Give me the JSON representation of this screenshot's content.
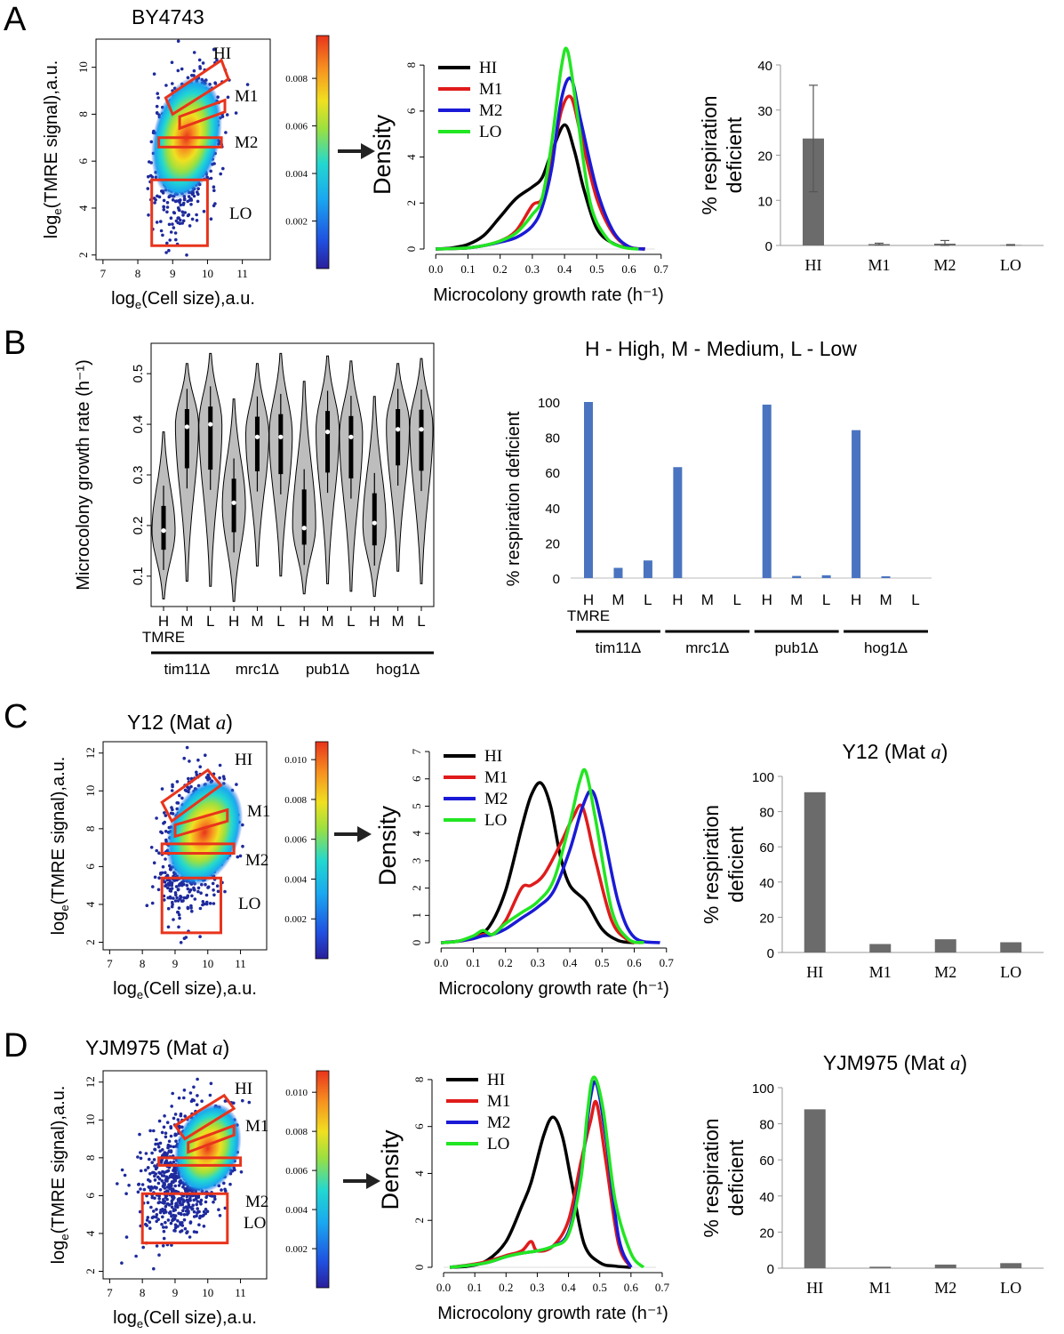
{
  "colors": {
    "HI": "#000000",
    "M1": "#e01b1b",
    "M2": "#1a1ad6",
    "LO": "#22e622",
    "bar_gray": "#6b6b6b",
    "bar_blue": "#4a74c0",
    "gate": "#e8341c",
    "violin": "#bdbdbd",
    "scatter_point": "#1e2a9c",
    "arrow": "#222222"
  },
  "icons": {
    "arrow": "right-arrow-icon"
  },
  "legend_labels": [
    "HI",
    "M1",
    "M2",
    "LO"
  ],
  "gate_labels": [
    "HI",
    "M1",
    "M2",
    "LO"
  ],
  "panels": {
    "A": {
      "letter": "A",
      "strain": "BY4743",
      "scatter": {
        "xlabel_main": "log",
        "xlabel_sub": "e",
        "xlabel_rest": "(Cell size),a.u.",
        "ylabel_main": "log",
        "ylabel_sub": "e",
        "ylabel_rest": "(TMRE signal),a.u.",
        "xticks": [
          "7",
          "8",
          "9",
          "10",
          "11"
        ],
        "yticks": [
          "2",
          "4",
          "6",
          "8",
          "10"
        ],
        "xlim": [
          6.8,
          11.8
        ],
        "ylim": [
          1.8,
          11.2
        ]
      },
      "colorbar_ticks": [
        "0.002",
        "0.004",
        "0.006",
        "0.008"
      ]
    },
    "B": {
      "letter": "B",
      "abbrev": "H - High, M - Medium, L - Low"
    },
    "C": {
      "letter": "C",
      "strain": "Y12 (Mat ",
      "strain_italic": "a",
      "strain_close": ")",
      "scatter": {
        "xlabel_main": "log",
        "xlabel_sub": "e",
        "xlabel_rest": "(Cell size),a.u.",
        "ylabel_main": "log",
        "ylabel_sub": "e",
        "ylabel_rest": "(TMRE signal),a.u.",
        "xticks": [
          "7",
          "8",
          "9",
          "10",
          "11"
        ],
        "yticks": [
          "2",
          "4",
          "6",
          "8",
          "10",
          "12"
        ],
        "xlim": [
          6.8,
          11.8
        ],
        "ylim": [
          1.6,
          12.6
        ]
      },
      "colorbar_ticks": [
        "0.002",
        "0.004",
        "0.006",
        "0.008",
        "0.010"
      ]
    },
    "D": {
      "letter": "D",
      "strain": "YJM975 (Mat ",
      "strain_italic": "a",
      "strain_close": ")",
      "scatter": {
        "xlabel_main": "log",
        "xlabel_sub": "e",
        "xlabel_rest": "(Cell size),a.u.",
        "ylabel_main": "log",
        "ylabel_sub": "e",
        "ylabel_rest": "(TMRE signal),a.u.",
        "xticks": [
          "7",
          "8",
          "9",
          "10",
          "11"
        ],
        "yticks": [
          "2",
          "4",
          "6",
          "8",
          "10",
          "12"
        ],
        "xlim": [
          6.8,
          11.8
        ],
        "ylim": [
          1.6,
          12.6
        ]
      },
      "colorbar_ticks": [
        "0.002",
        "0.004",
        "0.006",
        "0.008",
        "0.010"
      ]
    }
  },
  "chart_data": [
    {
      "id": "A-density",
      "type": "line",
      "ylabel": "Density",
      "xlabel": "Microcolony growth rate (h⁻¹)",
      "xlim": [
        -0.02,
        0.72
      ],
      "ylim": [
        0,
        8.2
      ],
      "xticks": [
        "0.0",
        "0.1",
        "0.2",
        "0.3",
        "0.4",
        "0.5",
        "0.6",
        "0.7"
      ],
      "yticks": [
        "0",
        "2",
        "4",
        "6",
        "8"
      ],
      "series": [
        {
          "name": "HI",
          "x": [
            0,
            0.05,
            0.1,
            0.15,
            0.2,
            0.25,
            0.3,
            0.33,
            0.36,
            0.4,
            0.43,
            0.46,
            0.5,
            0.55,
            0.6,
            0.65
          ],
          "y": [
            0,
            0.05,
            0.2,
            0.6,
            1.4,
            2.2,
            2.7,
            3.1,
            4.2,
            5.4,
            4.3,
            2.6,
            0.9,
            0.25,
            0.05,
            0
          ]
        },
        {
          "name": "M1",
          "x": [
            0,
            0.05,
            0.1,
            0.15,
            0.2,
            0.25,
            0.3,
            0.33,
            0.36,
            0.39,
            0.42,
            0.45,
            0.5,
            0.55,
            0.6,
            0.65
          ],
          "y": [
            0,
            0.02,
            0.05,
            0.15,
            0.35,
            0.8,
            1.9,
            2.2,
            3.8,
            6.0,
            6.6,
            5.0,
            2.2,
            0.7,
            0.1,
            0
          ]
        },
        {
          "name": "M2",
          "x": [
            0,
            0.05,
            0.1,
            0.15,
            0.2,
            0.25,
            0.3,
            0.33,
            0.36,
            0.39,
            0.42,
            0.45,
            0.5,
            0.55,
            0.6,
            0.65
          ],
          "y": [
            0,
            0.02,
            0.05,
            0.15,
            0.3,
            0.5,
            1.0,
            1.8,
            3.5,
            6.5,
            7.4,
            5.6,
            2.6,
            0.8,
            0.1,
            0
          ]
        },
        {
          "name": "LO",
          "x": [
            0,
            0.05,
            0.1,
            0.15,
            0.2,
            0.25,
            0.3,
            0.33,
            0.36,
            0.39,
            0.41,
            0.44,
            0.48,
            0.53,
            0.58,
            0.63
          ],
          "y": [
            0,
            0.02,
            0.05,
            0.15,
            0.35,
            0.7,
            1.5,
            2.2,
            4.6,
            7.9,
            8.6,
            5.8,
            2.0,
            0.5,
            0.08,
            0
          ]
        }
      ]
    },
    {
      "id": "A-bar",
      "type": "bar",
      "ylabel_line1": "% respiration",
      "ylabel_line2": "deficient",
      "categories": [
        "HI",
        "M1",
        "M2",
        "LO"
      ],
      "values": [
        23.7,
        0.3,
        0.4,
        0.1
      ],
      "errors": [
        11.8,
        0.2,
        0.7,
        0.1
      ],
      "ylim": [
        0,
        40
      ],
      "yticks": [
        "0",
        "10",
        "20",
        "30",
        "40"
      ]
    },
    {
      "id": "B-violin",
      "type": "violin",
      "ylabel": "Microcolony growth rate (h⁻¹)",
      "ylim": [
        0.04,
        0.56
      ],
      "yticks": [
        "0.1",
        "0.2",
        "0.3",
        "0.4",
        "0.5"
      ],
      "categories": [
        "H",
        "M",
        "L",
        "H",
        "M",
        "L",
        "H",
        "M",
        "L",
        "H",
        "M",
        "L"
      ],
      "tmre_label": "TMRE",
      "groups": [
        "tim11Δ",
        "mrc1Δ",
        "pub1Δ",
        "hog1Δ"
      ],
      "medians": [
        0.19,
        0.395,
        0.4,
        0.245,
        0.375,
        0.375,
        0.195,
        0.385,
        0.375,
        0.205,
        0.39,
        0.39
      ],
      "mins": [
        0.055,
        0.09,
        0.08,
        0.05,
        0.12,
        0.1,
        0.065,
        0.085,
        0.07,
        0.06,
        0.11,
        0.085
      ],
      "maxs": [
        0.385,
        0.52,
        0.54,
        0.45,
        0.52,
        0.54,
        0.485,
        0.535,
        0.525,
        0.455,
        0.52,
        0.53
      ],
      "modes": [
        0.19,
        0.4,
        0.4,
        0.24,
        0.38,
        0.38,
        0.2,
        0.39,
        0.38,
        0.2,
        0.4,
        0.395
      ]
    },
    {
      "id": "B-bar",
      "type": "bar",
      "ylabel": "% respiration deficient",
      "categories": [
        "H",
        "M",
        "L",
        "H",
        "M",
        "L",
        "H",
        "M",
        "L",
        "H",
        "M",
        "L"
      ],
      "values": [
        100,
        5.8,
        10,
        63,
        0,
        0,
        98.5,
        1.2,
        1.6,
        84,
        1.0,
        0
      ],
      "tmre_label": "TMRE",
      "groups": [
        "tim11Δ",
        "mrc1Δ",
        "pub1Δ",
        "hog1Δ"
      ],
      "ylim": [
        0,
        100
      ],
      "yticks": [
        "0",
        "20",
        "40",
        "60",
        "80",
        "100"
      ]
    },
    {
      "id": "C-density",
      "type": "line",
      "ylabel": "Density",
      "xlabel": "Microcolony growth rate (h⁻¹)",
      "xlim": [
        -0.02,
        0.72
      ],
      "ylim": [
        0,
        7.1
      ],
      "xticks": [
        "0.0",
        "0.1",
        "0.2",
        "0.3",
        "0.4",
        "0.5",
        "0.6",
        "0.7"
      ],
      "yticks": [
        "0",
        "1",
        "2",
        "3",
        "4",
        "5",
        "6",
        "7"
      ],
      "series": [
        {
          "name": "HI",
          "x": [
            0,
            0.05,
            0.1,
            0.15,
            0.2,
            0.25,
            0.28,
            0.31,
            0.34,
            0.37,
            0.4,
            0.45,
            0.5,
            0.55,
            0.6
          ],
          "y": [
            0,
            0.05,
            0.2,
            0.6,
            1.9,
            4.2,
            5.4,
            5.85,
            5.0,
            3.2,
            2.1,
            1.5,
            0.5,
            0.08,
            0
          ]
        },
        {
          "name": "M1",
          "x": [
            0,
            0.05,
            0.1,
            0.13,
            0.16,
            0.2,
            0.25,
            0.28,
            0.32,
            0.37,
            0.41,
            0.44,
            0.48,
            0.53,
            0.58,
            0.62
          ],
          "y": [
            0,
            0.05,
            0.15,
            0.3,
            0.3,
            0.8,
            2.0,
            2.1,
            2.5,
            3.6,
            4.6,
            4.95,
            3.0,
            0.8,
            0.1,
            0
          ]
        },
        {
          "name": "M2",
          "x": [
            0,
            0.05,
            0.1,
            0.13,
            0.16,
            0.2,
            0.25,
            0.3,
            0.35,
            0.4,
            0.44,
            0.47,
            0.5,
            0.55,
            0.6,
            0.68
          ],
          "y": [
            0,
            0.05,
            0.15,
            0.25,
            0.3,
            0.5,
            0.9,
            1.3,
            1.9,
            3.4,
            5.0,
            5.55,
            4.3,
            1.5,
            0.2,
            0
          ]
        },
        {
          "name": "LO",
          "x": [
            0,
            0.05,
            0.1,
            0.13,
            0.16,
            0.2,
            0.25,
            0.3,
            0.35,
            0.4,
            0.43,
            0.45,
            0.48,
            0.53,
            0.58,
            0.63
          ],
          "y": [
            0,
            0.05,
            0.25,
            0.45,
            0.3,
            0.7,
            1.1,
            1.5,
            2.3,
            4.4,
            5.9,
            6.25,
            4.5,
            1.2,
            0.15,
            0
          ]
        }
      ]
    },
    {
      "id": "C-bar",
      "type": "bar",
      "title_main": "Y12 (Mat ",
      "title_italic": "a",
      "title_close": ")",
      "ylabel_line1": "% respiration",
      "ylabel_line2": "deficient",
      "categories": [
        "HI",
        "M1",
        "M2",
        "LO"
      ],
      "values": [
        91,
        4.8,
        7.5,
        5.8
      ],
      "ylim": [
        0,
        100
      ],
      "yticks": [
        "0",
        "20",
        "40",
        "60",
        "80",
        "100"
      ]
    },
    {
      "id": "D-density",
      "type": "line",
      "ylabel": "Density",
      "xlabel": "Microcolony growth rate (h⁻¹)",
      "xlim": [
        -0.02,
        0.72
      ],
      "ylim": [
        0,
        8.3
      ],
      "xticks": [
        "0.0",
        "0.1",
        "0.2",
        "0.3",
        "0.4",
        "0.5",
        "0.6",
        "0.7"
      ],
      "yticks": [
        "0",
        "2",
        "4",
        "6",
        "8"
      ],
      "series": [
        {
          "name": "HI",
          "x": [
            0.02,
            0.08,
            0.14,
            0.2,
            0.25,
            0.28,
            0.32,
            0.35,
            0.38,
            0.41,
            0.45,
            0.5,
            0.55,
            0.6
          ],
          "y": [
            0,
            0.05,
            0.3,
            1.1,
            2.6,
            3.6,
            5.6,
            6.4,
            5.6,
            3.6,
            1.0,
            0.2,
            0.05,
            0
          ]
        },
        {
          "name": "M1",
          "x": [
            0.02,
            0.08,
            0.14,
            0.2,
            0.25,
            0.28,
            0.3,
            0.35,
            0.4,
            0.44,
            0.47,
            0.49,
            0.52,
            0.56,
            0.6
          ],
          "y": [
            0,
            0.1,
            0.25,
            0.5,
            0.7,
            1.1,
            0.7,
            0.9,
            2.0,
            4.5,
            6.2,
            7.0,
            4.5,
            1.0,
            0
          ]
        },
        {
          "name": "M2",
          "x": [
            0.02,
            0.08,
            0.14,
            0.2,
            0.25,
            0.3,
            0.35,
            0.4,
            0.44,
            0.47,
            0.49,
            0.52,
            0.56,
            0.6
          ],
          "y": [
            0,
            0.08,
            0.2,
            0.45,
            0.6,
            0.7,
            0.9,
            1.5,
            4.0,
            7.2,
            7.8,
            5.5,
            1.3,
            0
          ]
        },
        {
          "name": "LO",
          "x": [
            0.02,
            0.08,
            0.14,
            0.2,
            0.25,
            0.3,
            0.35,
            0.4,
            0.44,
            0.46,
            0.48,
            0.51,
            0.55,
            0.6,
            0.64
          ],
          "y": [
            0,
            0.08,
            0.2,
            0.45,
            0.6,
            0.7,
            0.9,
            1.4,
            3.8,
            6.5,
            8.1,
            6.8,
            2.8,
            0.6,
            0
          ]
        }
      ]
    },
    {
      "id": "D-bar",
      "type": "bar",
      "title_main": "YJM975 (Mat ",
      "title_italic": "a",
      "title_close": ")",
      "ylabel_line1": "% respiration",
      "ylabel_line2": "deficient",
      "categories": [
        "HI",
        "M1",
        "M2",
        "LO"
      ],
      "values": [
        88,
        0.8,
        2.0,
        2.8
      ],
      "ylim": [
        0,
        100
      ],
      "yticks": [
        "0",
        "20",
        "40",
        "60",
        "80",
        "100"
      ]
    }
  ]
}
